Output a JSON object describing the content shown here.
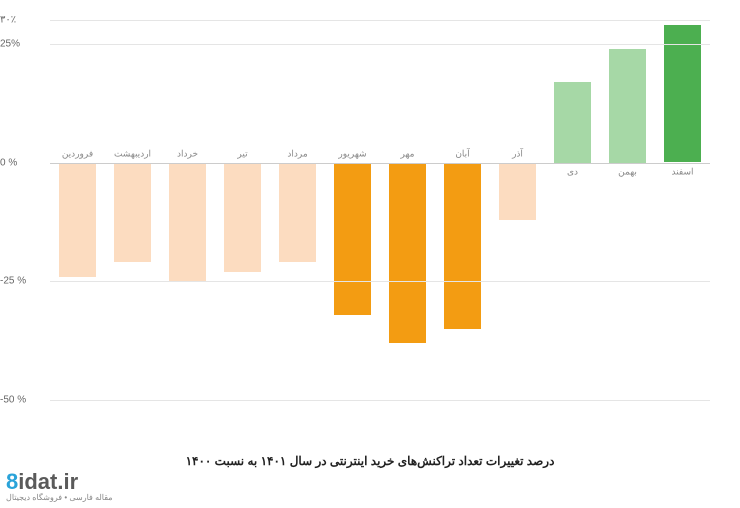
{
  "chart": {
    "type": "bar",
    "ylim": [
      -50,
      30
    ],
    "ytick_step": 25,
    "yticks": [
      {
        "v": 30,
        "label": "۳۰٪"
      },
      {
        "v": 25,
        "label": "25%"
      },
      {
        "v": 0,
        "label": "0 %"
      },
      {
        "v": -25,
        "label": "-25 %"
      },
      {
        "v": -50,
        "label": "-50 %"
      }
    ],
    "grid_color": "#e5e5e5",
    "baseline_color": "#cccccc",
    "background_color": "#ffffff",
    "label_fontsize": 9,
    "label_color": "#888888",
    "tick_fontsize": 10,
    "tick_color": "#666666",
    "bar_width": 0.68,
    "categories": [
      {
        "label": "فروردین",
        "value": -24,
        "color": "#fcdcc0"
      },
      {
        "label": "اردیبهشت",
        "value": -21,
        "color": "#fcdcc0"
      },
      {
        "label": "خرداد",
        "value": -25,
        "color": "#fcdcc0"
      },
      {
        "label": "تیر",
        "value": -23,
        "color": "#fcdcc0"
      },
      {
        "label": "مرداد",
        "value": -21,
        "color": "#fcdcc0"
      },
      {
        "label": "شهریور",
        "value": -32,
        "color": "#f39c12"
      },
      {
        "label": "مهر",
        "value": -38,
        "color": "#f39c12"
      },
      {
        "label": "آبان",
        "value": -35,
        "color": "#f39c12"
      },
      {
        "label": "آذر",
        "value": -12,
        "color": "#fcdcc0"
      },
      {
        "label": "دی",
        "value": 17,
        "color": "#a6d8a6"
      },
      {
        "label": "بهمن",
        "value": 24,
        "color": "#a6d8a6"
      },
      {
        "label": "اسفند",
        "value": 29,
        "color": "#4caf50"
      }
    ],
    "caption": "درصد تغییرات تعداد تراکنش‌های خرید اینترنتی در سال ۱۴۰۱ به نسبت ۱۴۰۰"
  },
  "watermark": {
    "logo_prefix": "8",
    "logo_text": "idat.ir",
    "sub": "مقاله فارسی • فروشگاه دیجیتال"
  }
}
